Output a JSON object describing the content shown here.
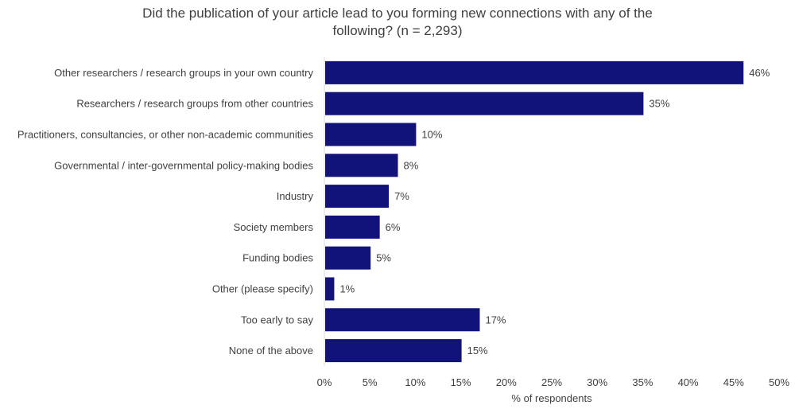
{
  "chart_data": {
    "type": "bar",
    "orientation": "horizontal",
    "title_lines": [
      "Did the publication of your article lead to you forming new connections with any of the",
      "following? (n = 2,293)"
    ],
    "categories": [
      "Other researchers / research groups in your own country",
      "Researchers / research groups from other countries",
      "Practitioners, consultancies, or other non-academic communities",
      "Governmental / inter-governmental policy-making bodies",
      "Industry",
      "Society members",
      "Funding bodies",
      "Other (please specify)",
      "Too early to say",
      "None of the above"
    ],
    "values": [
      46,
      35,
      10,
      8,
      7,
      6,
      5,
      1,
      17,
      15
    ],
    "value_labels": [
      "46%",
      "35%",
      "10%",
      "8%",
      "7%",
      "6%",
      "5%",
      "1%",
      "17%",
      "15%"
    ],
    "xlabel": "% of respondents",
    "xlim": [
      0,
      50
    ],
    "xticks": [
      0,
      5,
      10,
      15,
      20,
      25,
      30,
      35,
      40,
      45,
      50
    ],
    "xtick_labels": [
      "0%",
      "5%",
      "10%",
      "15%",
      "20%",
      "25%",
      "30%",
      "35%",
      "40%",
      "45%",
      "50%"
    ],
    "grid": false,
    "bar_color": "#12137a"
  }
}
